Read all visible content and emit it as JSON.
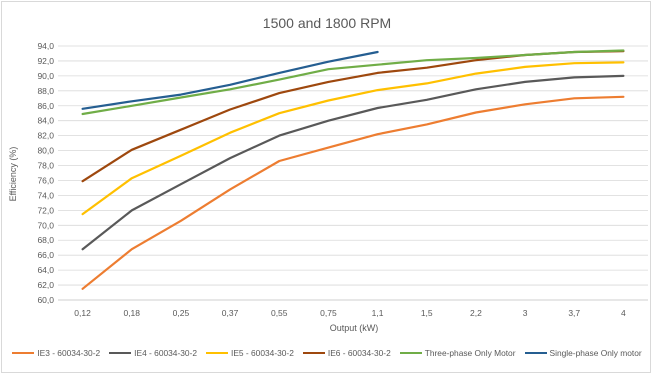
{
  "chart_data": {
    "type": "line",
    "title": "1500 and 1800 RPM",
    "xlabel": "Output (kW)",
    "ylabel": "Efficiency (%)",
    "ylim": [
      60,
      94
    ],
    "ytick_step": 2,
    "yticks": [
      "60,0",
      "62,0",
      "64,0",
      "66,0",
      "68,0",
      "70,0",
      "72,0",
      "74,0",
      "76,0",
      "78,0",
      "80,0",
      "82,0",
      "84,0",
      "86,0",
      "88,0",
      "90,0",
      "92,0",
      "94,0"
    ],
    "categories": [
      "0,12",
      "0,18",
      "0,25",
      "0,37",
      "0,55",
      "0,75",
      "1,1",
      "1,5",
      "2,2",
      "3",
      "3,7",
      "4"
    ],
    "grid": true,
    "legend_position": "bottom",
    "series": [
      {
        "name": "IE3 - 60034-30-2",
        "color": "#ed7d31",
        "values": [
          61.5,
          66.8,
          70.6,
          74.8,
          78.6,
          80.4,
          82.2,
          83.5,
          85.1,
          86.2,
          87.0,
          87.2
        ]
      },
      {
        "name": "IE4 - 60034-30-2",
        "color": "#595959",
        "values": [
          66.8,
          72.0,
          75.5,
          79.0,
          82.0,
          84.0,
          85.7,
          86.8,
          88.2,
          89.2,
          89.8,
          90.0
        ]
      },
      {
        "name": "IE5 - 60034-30-2",
        "color": "#ffc000",
        "values": [
          71.5,
          76.3,
          79.3,
          82.4,
          85.0,
          86.7,
          88.1,
          89.0,
          90.3,
          91.2,
          91.7,
          91.8
        ]
      },
      {
        "name": "IE6 - 60034-30-2",
        "color": "#9e480e",
        "values": [
          75.9,
          80.1,
          82.8,
          85.5,
          87.7,
          89.2,
          90.4,
          91.1,
          92.1,
          92.8,
          93.2,
          93.3
        ]
      },
      {
        "name": "Three-phase Only Motor",
        "color": "#70ad47",
        "values": [
          84.9,
          86.0,
          87.1,
          88.2,
          89.5,
          90.9,
          91.5,
          92.1,
          92.4,
          92.8,
          93.2,
          93.4
        ]
      },
      {
        "name": "Single-phase Only motor",
        "color": "#255e91",
        "values": [
          85.6,
          86.6,
          87.5,
          88.8,
          90.4,
          91.9,
          93.2,
          null,
          null,
          null,
          null,
          null
        ]
      }
    ]
  }
}
